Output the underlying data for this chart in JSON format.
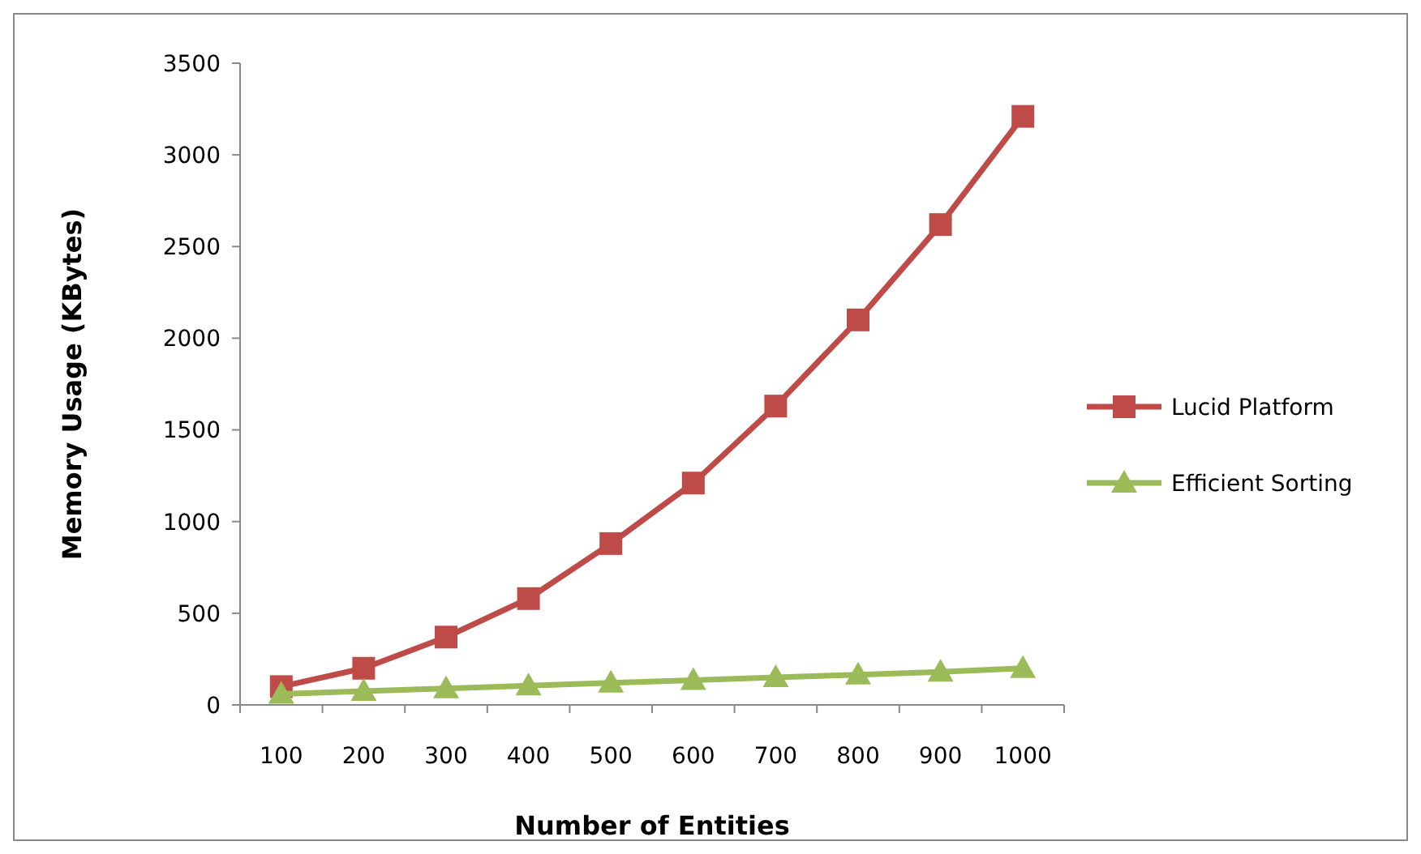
{
  "chart_data": {
    "type": "line",
    "xlabel": "Number of Entities",
    "ylabel": "Memory Usage (KBytes)",
    "categories": [
      "100",
      "200",
      "300",
      "400",
      "500",
      "600",
      "700",
      "800",
      "900",
      "1000"
    ],
    "series": [
      {
        "name": "Lucid Platform",
        "color": "#be4b48",
        "marker": "square",
        "values": [
          100,
          200,
          370,
          580,
          880,
          1210,
          1630,
          2100,
          2620,
          3210
        ]
      },
      {
        "name": "Efficient Sorting",
        "color": "#9bbb59",
        "marker": "triangle",
        "values": [
          60,
          75,
          90,
          105,
          120,
          135,
          150,
          165,
          180,
          200
        ]
      }
    ],
    "ylim": [
      0,
      3500
    ],
    "yticks": [
      0,
      500,
      1000,
      1500,
      2000,
      2500,
      3000,
      3500
    ],
    "grid": false,
    "legend": "right"
  }
}
